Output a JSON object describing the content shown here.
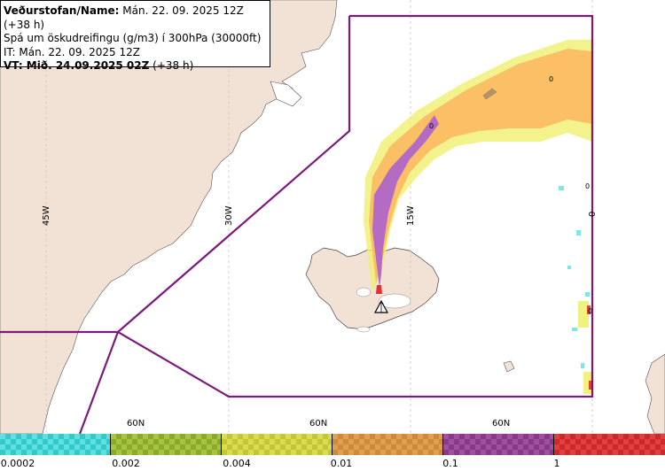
{
  "header": {
    "line1_bold": "Veðurstofan/Name:",
    "line1_rest": " Mán. 22. 09. 2025 12Z (+38 h)",
    "line2": "Spá um öskudreifingu (g/m3) í 300hPa (30000ft)",
    "line3": "IT: Mán. 22. 09. 2025 12Z",
    "line4_bold": "VT: Mið. 24.09.2025 02Z",
    "line4_rest": " (+38 h)"
  },
  "map": {
    "meridian_labels": [
      "45W",
      "30W",
      "15W",
      "0"
    ],
    "parallel_labels": [
      "60N",
      "60N",
      "60N"
    ],
    "contour_labels": [
      "0",
      "0",
      "0",
      "0"
    ],
    "colors": {
      "land": "#f2e2d5",
      "sea": "#ffffff",
      "boundary": "#7b1a7b",
      "grid": "#c8c8c8",
      "ash_lowest": "#5fe0e0",
      "ash_low": "#c8e070",
      "ash_medium": "#f0f070",
      "ash_high": "#fbbf66",
      "ash_very_high": "#b36bc4",
      "ash_extreme": "#e03030"
    },
    "icons": [
      "volcano-icon"
    ]
  },
  "legend": {
    "ticks": [
      "0.0002",
      "0.002",
      "0.004",
      "0.01",
      "0.1",
      "1"
    ],
    "colors": [
      "#33c9c9",
      "#8aaa2e",
      "#c4c63a",
      "#cc8a3a",
      "#863a88",
      "#cc2a2a"
    ]
  }
}
